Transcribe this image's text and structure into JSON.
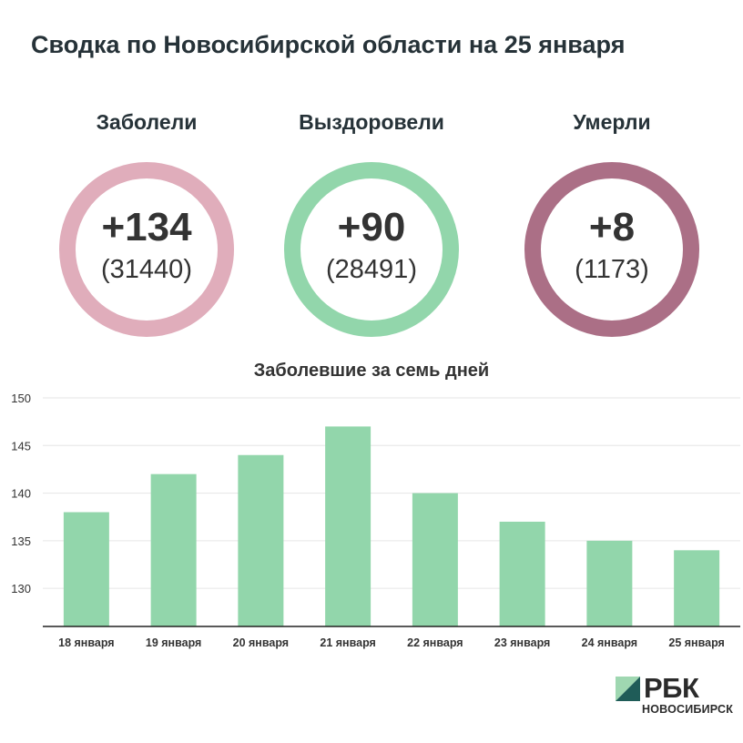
{
  "title": "Сводка по Новосибирской области на 25 января",
  "stats": [
    {
      "label": "Заболели",
      "delta": "+134",
      "total": "(31440)",
      "color": "#e0adbb"
    },
    {
      "label": "Выздоровели",
      "delta": "+90",
      "total": "(28491)",
      "color": "#92d6ab"
    },
    {
      "label": "Умерли",
      "delta": "+8",
      "total": "(1173)",
      "color": "#ab6f86"
    }
  ],
  "chart_data": {
    "type": "bar",
    "title": "Заболевшие за семь дней",
    "categories": [
      "18 января",
      "19 января",
      "20 января",
      "21 января",
      "22 января",
      "23 января",
      "24 января",
      "25 января"
    ],
    "values": [
      138,
      142,
      144,
      147,
      140,
      137,
      135,
      134
    ],
    "ylim": [
      126,
      150
    ],
    "yticks": [
      130,
      135,
      140,
      145,
      150
    ],
    "grid": true,
    "bar_color": "#92d6ab"
  },
  "logo": {
    "name": "РБК",
    "city": "НОВОСИБИРСК"
  }
}
